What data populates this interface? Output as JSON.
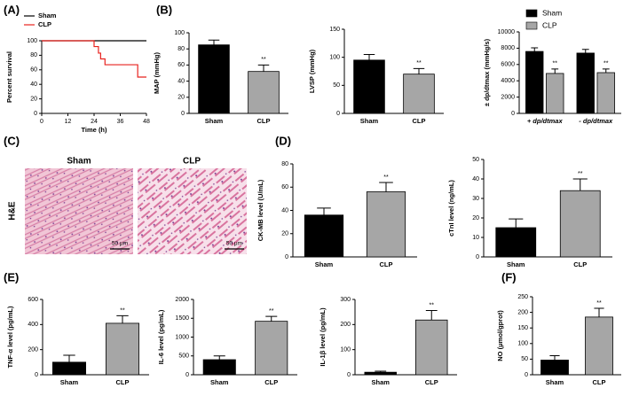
{
  "figure": {
    "panels": [
      "(A)",
      "(B)",
      "(C)",
      "(D)",
      "(E)",
      "(F)"
    ],
    "histology": {
      "stain": "H&E",
      "groups": [
        "Sham",
        "CLP"
      ],
      "scale_bar": [
        "50 μm",
        "50 μm"
      ]
    }
  },
  "chart_data": [
    {
      "type": "line",
      "xlabel": "Time (h)",
      "ylabel": "Percent survival",
      "xlim": [
        0,
        48
      ],
      "xticks": [
        0,
        12,
        24,
        36,
        48
      ],
      "ylim": [
        0,
        100
      ],
      "yticks": [
        0,
        20,
        40,
        60,
        80,
        100
      ],
      "legend": "top-left",
      "series": [
        {
          "name": "Sham",
          "color": "#000000",
          "x": [
            0,
            48
          ],
          "values": [
            100,
            100
          ]
        },
        {
          "name": "CLP",
          "color": "#e8231f",
          "x": [
            0,
            24,
            24,
            26,
            26,
            27,
            27,
            29,
            29,
            44,
            44,
            48
          ],
          "values": [
            100,
            100,
            92,
            92,
            83,
            83,
            75,
            75,
            67,
            67,
            50,
            50
          ]
        }
      ]
    },
    {
      "type": "bar",
      "ylabel": "MAP (mmHg)",
      "categories": [
        "Sham",
        "CLP"
      ],
      "values": [
        85,
        52
      ],
      "errors": [
        6,
        8
      ],
      "colors": [
        "#000000",
        "#a6a6a6"
      ],
      "ylim": [
        0,
        100
      ],
      "yticks": [
        0,
        20,
        40,
        60,
        80,
        100
      ],
      "annotations": [
        {
          "text": "**",
          "category": "CLP"
        }
      ]
    },
    {
      "type": "bar",
      "ylabel": "LVSP (mmHg)",
      "categories": [
        "Sham",
        "CLP"
      ],
      "values": [
        95,
        70
      ],
      "errors": [
        10,
        10
      ],
      "colors": [
        "#000000",
        "#a6a6a6"
      ],
      "ylim": [
        0,
        150
      ],
      "yticks": [
        0,
        50,
        100,
        150
      ],
      "annotations": [
        {
          "text": "**",
          "category": "CLP"
        }
      ]
    },
    {
      "type": "grouped_bar",
      "ylabel": "± dp/dtmax (mmHg/s)",
      "categories": [
        "+ dp/dtmax",
        "- dp/dtmax"
      ],
      "legend": "top",
      "ylim": [
        0,
        10000
      ],
      "yticks": [
        0,
        2000,
        4000,
        6000,
        8000,
        10000
      ],
      "series": [
        {
          "name": "Sham",
          "color": "#000000",
          "values": [
            7600,
            7400
          ],
          "errors": [
            450,
            450
          ]
        },
        {
          "name": "CLP",
          "color": "#a6a6a6",
          "values": [
            4900,
            5000
          ],
          "errors": [
            550,
            450
          ],
          "annotations": [
            "**",
            "**"
          ]
        }
      ]
    },
    {
      "type": "bar",
      "ylabel": "CK-MB level (U/mL)",
      "categories": [
        "Sham",
        "CLP"
      ],
      "values": [
        36,
        56
      ],
      "errors": [
        6,
        8
      ],
      "colors": [
        "#000000",
        "#a6a6a6"
      ],
      "ylim": [
        0,
        80
      ],
      "yticks": [
        0,
        20,
        40,
        60,
        80
      ],
      "annotations": [
        {
          "text": "**",
          "category": "CLP"
        }
      ]
    },
    {
      "type": "bar",
      "ylabel": "cTnI level (ng/mL)",
      "categories": [
        "Sham",
        "CLP"
      ],
      "values": [
        15,
        34
      ],
      "errors": [
        4.5,
        6
      ],
      "colors": [
        "#000000",
        "#a6a6a6"
      ],
      "ylim": [
        0,
        50
      ],
      "yticks": [
        0,
        10,
        20,
        30,
        40,
        50
      ],
      "annotations": [
        {
          "text": "**",
          "category": "CLP"
        }
      ]
    },
    {
      "type": "bar",
      "ylabel": "TNF-α level (pg/mL)",
      "categories": [
        "Sham",
        "CLP"
      ],
      "values": [
        100,
        410
      ],
      "errors": [
        55,
        60
      ],
      "colors": [
        "#000000",
        "#a6a6a6"
      ],
      "ylim": [
        0,
        600
      ],
      "yticks": [
        0,
        200,
        400,
        600
      ],
      "annotations": [
        {
          "text": "**",
          "category": "CLP"
        }
      ]
    },
    {
      "type": "bar",
      "ylabel": "IL-6 level (pg/mL)",
      "categories": [
        "Sham",
        "CLP"
      ],
      "values": [
        400,
        1420
      ],
      "errors": [
        100,
        130
      ],
      "colors": [
        "#000000",
        "#a6a6a6"
      ],
      "ylim": [
        0,
        2000
      ],
      "yticks": [
        0,
        500,
        1000,
        1500,
        2000
      ],
      "annotations": [
        {
          "text": "**",
          "category": "CLP"
        }
      ]
    },
    {
      "type": "bar",
      "ylabel": "IL-1β level (pg/mL)",
      "categories": [
        "Sham",
        "CLP"
      ],
      "values": [
        10,
        218
      ],
      "errors": [
        4,
        38
      ],
      "colors": [
        "#000000",
        "#a6a6a6"
      ],
      "ylim": [
        0,
        300
      ],
      "yticks": [
        0,
        100,
        200,
        300
      ],
      "annotations": [
        {
          "text": "**",
          "category": "CLP"
        }
      ]
    },
    {
      "type": "bar",
      "ylabel": "NO (μmol/gprot)",
      "categories": [
        "Sham",
        "CLP"
      ],
      "values": [
        47,
        185
      ],
      "errors": [
        14,
        28
      ],
      "colors": [
        "#000000",
        "#a6a6a6"
      ],
      "ylim": [
        0,
        250
      ],
      "yticks": [
        0,
        50,
        100,
        150,
        200,
        250
      ],
      "annotations": [
        {
          "text": "**",
          "category": "CLP"
        }
      ]
    }
  ]
}
